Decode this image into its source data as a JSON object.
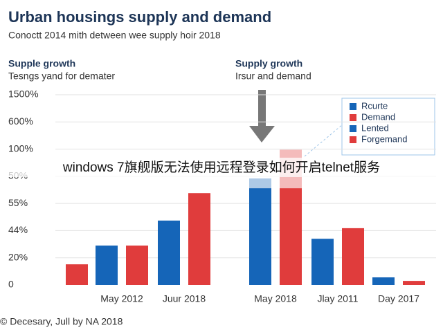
{
  "chart_data": {
    "type": "bar",
    "title": "Urban housings supply and demand",
    "subtitle": "Conoctt 2014 mith detween wee supply hoir 2018",
    "annotations": [
      {
        "heading": "Supple growth",
        "text": "Tesngs yand for demater"
      },
      {
        "heading": "Supply growth",
        "text": "Irsur and demand"
      }
    ],
    "footer": "© Decesary, Jull by NA 2018",
    "overlay_text": "windows 7旗舰版无法使用远程登录如何开启telnet服务",
    "y_axis_labels": [
      "0",
      "20%",
      "44%",
      "55%",
      "50%",
      "100%",
      "600%",
      "1500%"
    ],
    "ylim": [
      0,
      7
    ],
    "categories": [
      null,
      "May 2012",
      "Juur 2018",
      "May 2018",
      "Jlay 2011",
      "Day 2017"
    ],
    "series": [
      {
        "name": "Rcurte",
        "color": "#1565b8",
        "values": [
          null,
          1.45,
          2.37,
          3.56,
          1.7,
          0.28
        ]
      },
      {
        "name": "Demand",
        "color": "#e03c3c",
        "values": [
          0.76,
          1.45,
          3.38,
          3.56,
          2.09,
          0.15
        ]
      },
      {
        "name": "Lented",
        "color": "#1565b8",
        "stack_on": 0,
        "values": [
          null,
          null,
          null,
          0.36,
          null,
          null
        ]
      },
      {
        "name": "Forgemand",
        "color": "#e03c3c",
        "stack_on": 1,
        "values": [
          null,
          null,
          null,
          1.42,
          null,
          null
        ]
      }
    ]
  }
}
